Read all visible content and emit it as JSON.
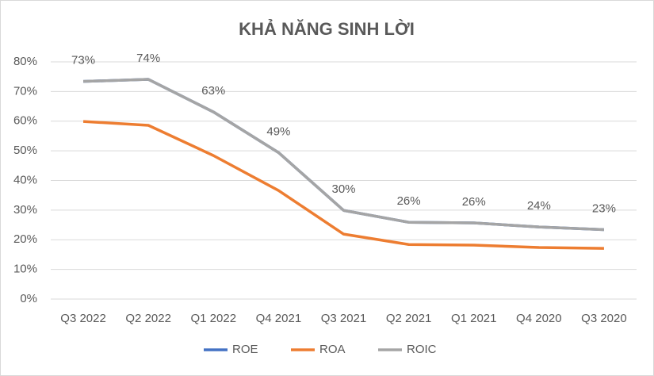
{
  "chart_data": {
    "type": "line",
    "title": "KHẢ NĂNG SINH LỜI",
    "categories": [
      "Q3 2022",
      "Q2 2022",
      "Q1 2022",
      "Q4 2021",
      "Q3 2021",
      "Q2 2021",
      "Q1 2021",
      "Q4 2020",
      "Q3 2020"
    ],
    "series": [
      {
        "name": "ROE",
        "color": "#4472c4",
        "values": [
          73.4,
          74.1,
          63.1,
          49.4,
          29.9,
          25.9,
          25.7,
          24.3,
          23.4
        ]
      },
      {
        "name": "ROA",
        "color": "#ed7d31",
        "values": [
          59.9,
          58.6,
          48.4,
          36.6,
          21.9,
          18.4,
          18.2,
          17.4,
          17.1
        ]
      },
      {
        "name": "ROIC",
        "color": "#a5a5a5",
        "values": [
          73.4,
          74.1,
          63.1,
          49.4,
          29.9,
          25.9,
          25.7,
          24.3,
          23.4
        ],
        "value_labels": [
          "73%",
          "74%",
          "63%",
          "49%",
          "30%",
          "26%",
          "26%",
          "24%",
          "23%"
        ]
      }
    ],
    "ylim": [
      0,
      80
    ],
    "yticks": [
      {
        "value": 0,
        "label": "0%"
      },
      {
        "value": 10,
        "label": "10%"
      },
      {
        "value": 20,
        "label": "20%"
      },
      {
        "value": 30,
        "label": "30%"
      },
      {
        "value": 40,
        "label": "40%"
      },
      {
        "value": 50,
        "label": "50%"
      },
      {
        "value": 60,
        "label": "60%"
      },
      {
        "value": 70,
        "label": "70%"
      },
      {
        "value": 80,
        "label": "80%"
      }
    ],
    "grid": true,
    "legend": "bottom"
  }
}
